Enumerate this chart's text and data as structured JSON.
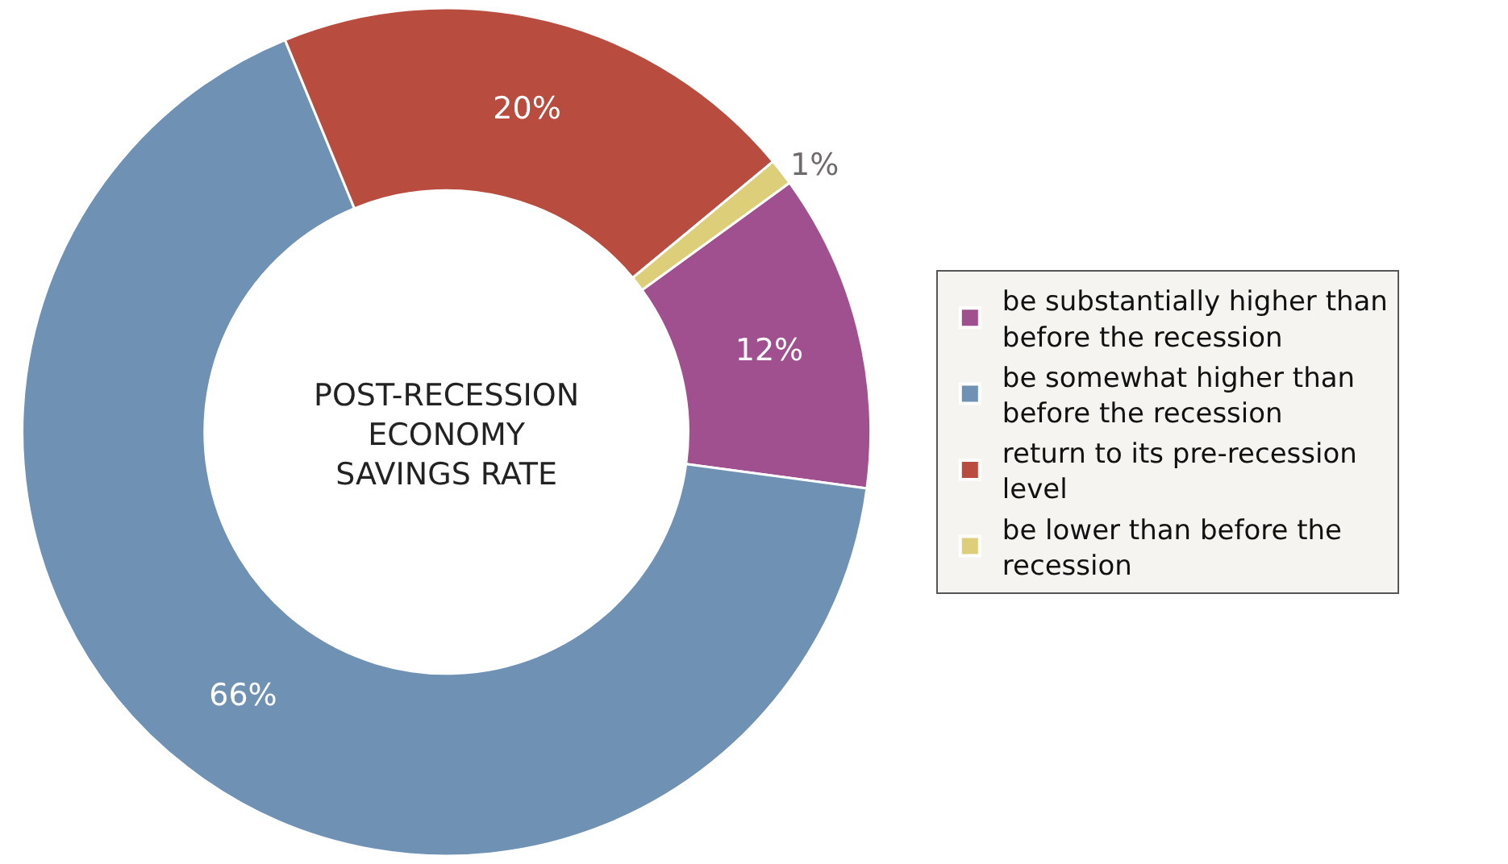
{
  "chart_data": {
    "type": "donut",
    "title": "POST-RECESSION ECONOMY SAVINGS RATE",
    "categories": [
      "be substantially higher than before the recession",
      "be somewhat higher than before the recession",
      "return to its pre-recession level",
      "be lower than before the recession"
    ],
    "values": [
      12,
      66,
      20,
      1
    ],
    "value_labels": [
      "12%",
      "66%",
      "20%",
      "1%"
    ],
    "colors": [
      "#a0508e",
      "#6e91b4",
      "#b84c3e",
      "#ddcf7a"
    ],
    "legend": "right"
  }
}
